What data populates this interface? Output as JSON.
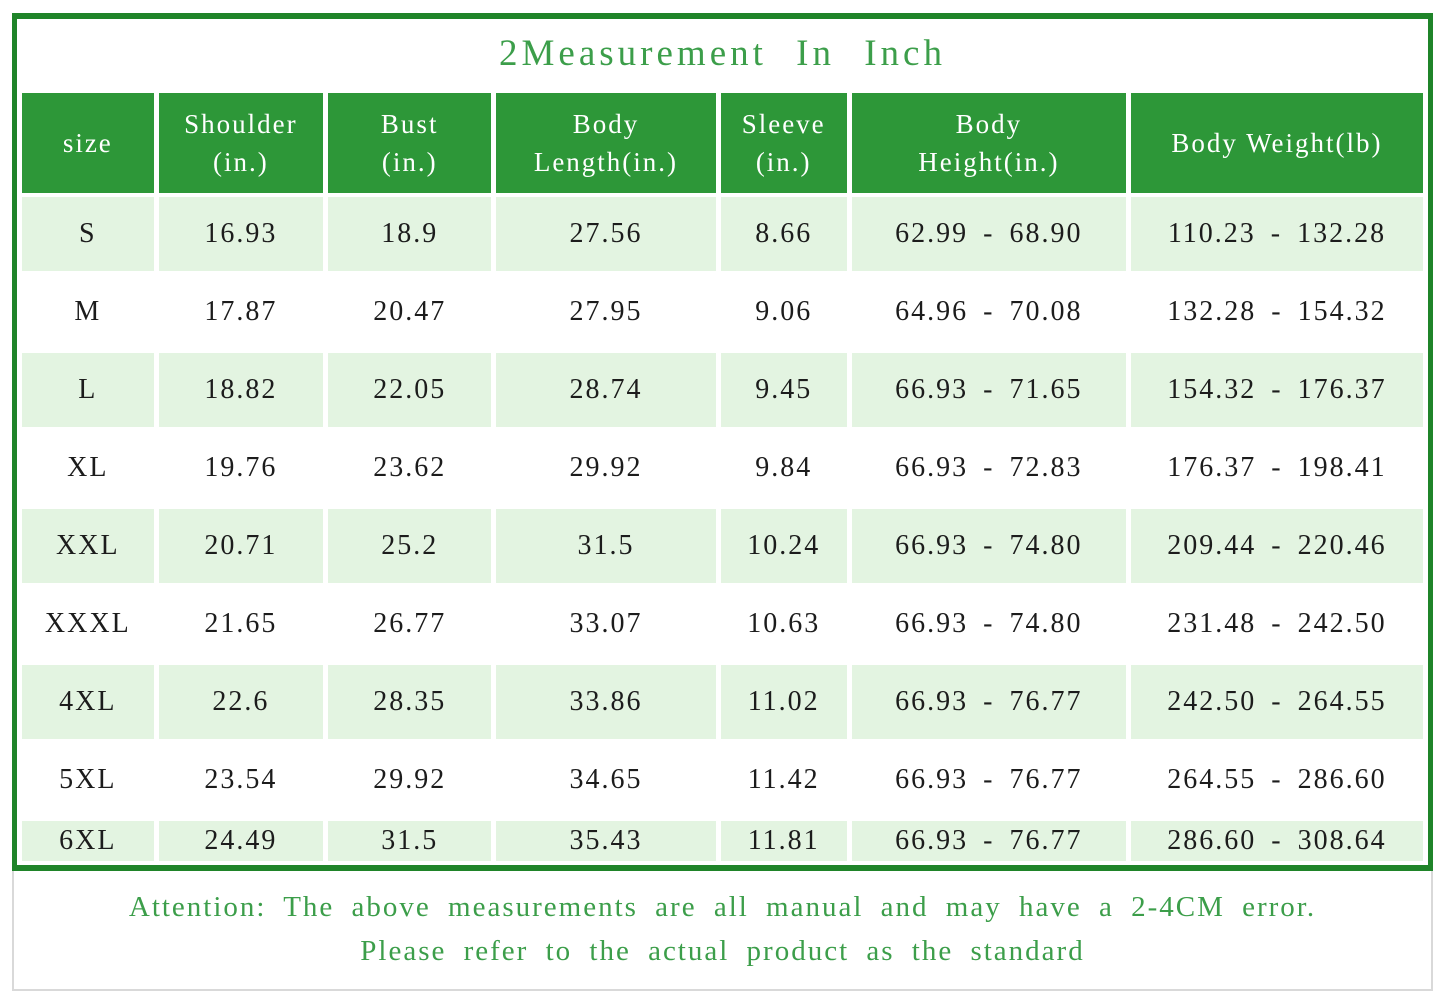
{
  "colors": {
    "header-green": "#2d9738",
    "border-green": "#1f8429",
    "row-light": "#e3f4e1",
    "text-green": "#3c9e4a",
    "cell-text": "#1c1c1c",
    "footer-border": "#d9d9d9"
  },
  "chart_data": {
    "type": "table",
    "title": "2Measurement In Inch",
    "legend_position": "none",
    "columns": [
      {
        "line1": "size",
        "line2": ""
      },
      {
        "line1": "Shoulder",
        "line2": "(in.)"
      },
      {
        "line1": "Bust",
        "line2": "(in.)"
      },
      {
        "line1": "Body",
        "line2": "Length(in.)"
      },
      {
        "line1": "Sleeve",
        "line2": "(in.)"
      },
      {
        "line1": "Body",
        "line2": "Height(in.)"
      },
      {
        "line1": "Body Weight(lb)",
        "line2": ""
      }
    ],
    "rows": [
      [
        "S",
        "16.93",
        "18.9",
        "27.56",
        "8.66",
        "62.99 - 68.90",
        "110.23 - 132.28"
      ],
      [
        "M",
        "17.87",
        "20.47",
        "27.95",
        "9.06",
        "64.96 - 70.08",
        "132.28 - 154.32"
      ],
      [
        "L",
        "18.82",
        "22.05",
        "28.74",
        "9.45",
        "66.93 - 71.65",
        "154.32 - 176.37"
      ],
      [
        "XL",
        "19.76",
        "23.62",
        "29.92",
        "9.84",
        "66.93 - 72.83",
        "176.37 - 198.41"
      ],
      [
        "XXL",
        "20.71",
        "25.2",
        "31.5",
        "10.24",
        "66.93 - 74.80",
        "209.44 - 220.46"
      ],
      [
        "XXXL",
        "21.65",
        "26.77",
        "33.07",
        "10.63",
        "66.93 - 74.80",
        "231.48 - 242.50"
      ],
      [
        "4XL",
        "22.6",
        "28.35",
        "33.86",
        "11.02",
        "66.93 - 76.77",
        "242.50 - 264.55"
      ],
      [
        "5XL",
        "23.54",
        "29.92",
        "34.65",
        "11.42",
        "66.93 - 76.77",
        "264.55 - 286.60"
      ],
      [
        "6XL",
        "24.49",
        "31.5",
        "35.43",
        "11.81",
        "66.93 - 76.77",
        "286.60 - 308.64"
      ]
    ]
  },
  "footer": {
    "line1": "Attention: The above measurements are all manual and may have a 2-4CM error.",
    "line2": "Please refer to the actual product as the standard"
  }
}
